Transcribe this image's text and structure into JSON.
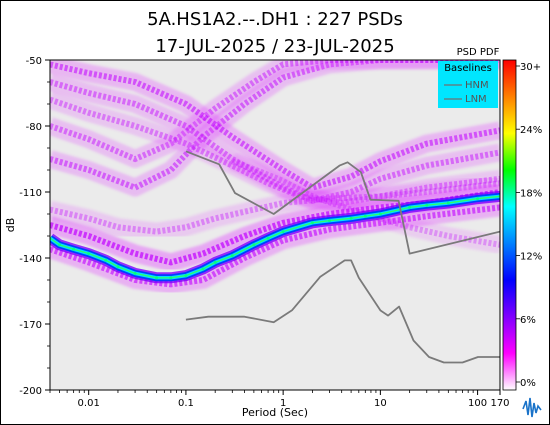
{
  "chart_data": {
    "type": "heatmap",
    "title": "5A.HS1A2.--.DH1 : 227 PSDs",
    "subtitle": "17-JUL-2025 / 23-JUL-2025",
    "xlabel": "Period (Sec)",
    "ylabel": "dB",
    "x_scale": "log",
    "xlim": [
      0.004,
      170
    ],
    "ylim": [
      -200,
      -50
    ],
    "x_ticks": [
      "0.01",
      "0.1",
      "1",
      "10",
      "100",
      "170"
    ],
    "y_ticks": [
      "-50",
      "-80",
      "-110",
      "-140",
      "-170",
      "-200"
    ],
    "colorbar": {
      "title": "PSD PDF",
      "ticks": [
        "30+",
        "24%",
        "18%",
        "12%",
        "6%",
        "0%"
      ],
      "colors": [
        "#ff0000",
        "#ff8000",
        "#ffff00",
        "#00ff00",
        "#00ffff",
        "#0080ff",
        "#0000ff",
        "#8000ff",
        "#ff00ff",
        "#ffffff"
      ]
    },
    "legend": {
      "title": "Baselines",
      "position": "top-right",
      "entries": [
        "HNM",
        "LNM"
      ]
    },
    "series": [
      {
        "name": "HNM",
        "x": [
          0.1,
          0.22,
          0.32,
          0.8,
          3.8,
          4.6,
          6.3,
          7.9,
          15.4,
          20,
          170
        ],
        "y": [
          -91.5,
          -97.4,
          -110.5,
          -120,
          -98,
          -96.5,
          -101,
          -113.5,
          -114,
          -138,
          -128
        ]
      },
      {
        "name": "LNM",
        "x": [
          0.1,
          0.17,
          0.4,
          0.8,
          1.24,
          2.4,
          4.3,
          5,
          6,
          10,
          12,
          15.6,
          21.9,
          31.6,
          45,
          70,
          101,
          154,
          170
        ],
        "y": [
          -168,
          -166.7,
          -166.7,
          -169.2,
          -163.7,
          -148.6,
          -141.1,
          -141.1,
          -149,
          -163.8,
          -166.2,
          -162.1,
          -177.5,
          -185,
          -187.5,
          -187.5,
          -185,
          -185,
          -185
        ]
      },
      {
        "name": "mode",
        "x": [
          0.004,
          0.005,
          0.007,
          0.01,
          0.015,
          0.02,
          0.03,
          0.05,
          0.07,
          0.1,
          0.15,
          0.2,
          0.3,
          0.5,
          0.7,
          1,
          2,
          3,
          5,
          7,
          10,
          20,
          30,
          50,
          100,
          170
        ],
        "y": [
          -131,
          -134,
          -136,
          -138,
          -141,
          -144,
          -147,
          -149,
          -149,
          -148,
          -145,
          -142,
          -139,
          -134,
          -131,
          -128,
          -124,
          -123,
          -122,
          -121,
          -120,
          -117,
          -116,
          -115,
          -113,
          -112
        ]
      }
    ],
    "density_bands": [
      {
        "x": [
          0.004,
          0.01,
          0.03,
          0.07,
          0.15,
          0.4,
          1,
          3,
          10,
          30,
          170
        ],
        "y": [
          -95,
          -100,
          -108,
          -100,
          -85,
          -70,
          -58,
          -52,
          -50,
          -50,
          -50
        ],
        "weight": 0.5
      },
      {
        "x": [
          0.004,
          0.01,
          0.03,
          0.07,
          0.2,
          0.5,
          1,
          3,
          10,
          30,
          170
        ],
        "y": [
          -80,
          -86,
          -95,
          -88,
          -72,
          -60,
          -52,
          -50,
          -50,
          -50,
          -50
        ],
        "weight": 0.45
      },
      {
        "x": [
          0.004,
          0.01,
          0.03,
          0.1,
          0.3,
          1,
          2,
          5,
          10,
          30,
          170
        ],
        "y": [
          -52,
          -56,
          -60,
          -70,
          -85,
          -100,
          -108,
          -103,
          -96,
          -88,
          -82
        ],
        "weight": 0.55
      },
      {
        "x": [
          0.004,
          0.01,
          0.03,
          0.1,
          0.3,
          1,
          2,
          5,
          10,
          30,
          170
        ],
        "y": [
          -60,
          -65,
          -70,
          -80,
          -95,
          -108,
          -114,
          -110,
          -104,
          -98,
          -92
        ],
        "weight": 0.45
      },
      {
        "x": [
          0.004,
          0.01,
          0.03,
          0.1,
          0.3,
          0.7,
          1.5,
          4,
          10,
          30,
          170
        ],
        "y": [
          -68,
          -74,
          -80,
          -88,
          -98,
          -106,
          -112,
          -115,
          -112,
          -108,
          -104
        ],
        "weight": 0.4
      },
      {
        "x": [
          0.004,
          0.01,
          0.02,
          0.05,
          0.1,
          0.2,
          0.5,
          1,
          3,
          10,
          30,
          170
        ],
        "y": [
          -118,
          -122,
          -126,
          -128,
          -126,
          -122,
          -118,
          -115,
          -113,
          -112,
          -110,
          -106
        ],
        "weight": 0.35
      },
      {
        "x": [
          0.004,
          0.01,
          0.03,
          0.07,
          0.15,
          0.4,
          1,
          3,
          10,
          30,
          170
        ],
        "y": [
          -125,
          -130,
          -138,
          -142,
          -138,
          -130,
          -124,
          -120,
          -117,
          -115,
          -110
        ],
        "weight": 0.7
      },
      {
        "x": [
          0.004,
          0.01,
          0.03,
          0.07,
          0.15,
          0.4,
          1,
          3,
          10,
          30,
          170
        ],
        "y": [
          -136,
          -142,
          -150,
          -152,
          -150,
          -140,
          -132,
          -127,
          -124,
          -121,
          -117
        ],
        "weight": 0.6
      },
      {
        "x": [
          0.3,
          0.6,
          1,
          2,
          5,
          10,
          20,
          50,
          170
        ],
        "y": [
          -96,
          -101,
          -105,
          -112,
          -118,
          -122,
          -126,
          -130,
          -134
        ],
        "weight": 0.3
      }
    ]
  },
  "logo": "iris-logo"
}
